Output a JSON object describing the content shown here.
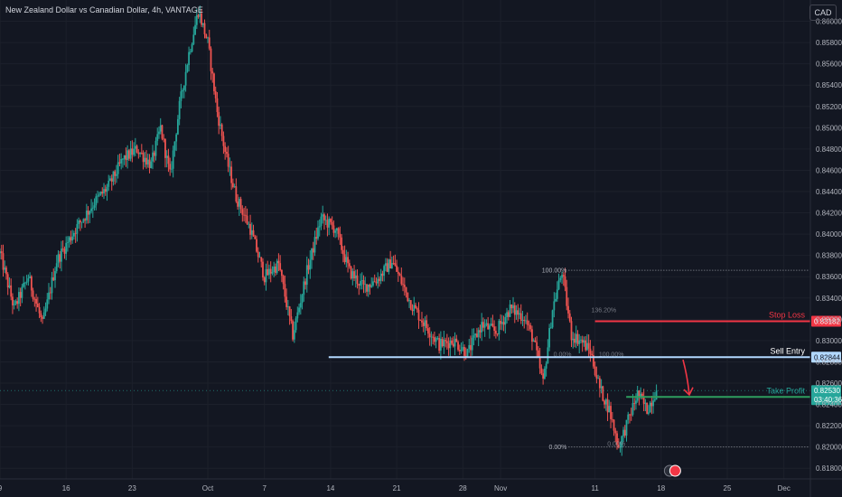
{
  "title": "New Zealand Dollar vs Canadian Dollar, 4h, VANTAGE",
  "currency": "CAD",
  "chart_data": {
    "type": "candlestick",
    "ylim": [
      0.817,
      0.862
    ],
    "y_ticks": [
      "0.86000",
      "0.85800",
      "0.85600",
      "0.85400",
      "0.85200",
      "0.85000",
      "0.84800",
      "0.84600",
      "0.84400",
      "0.84200",
      "0.84000",
      "0.83800",
      "0.83600",
      "0.83400",
      "0.83200",
      "0.83000",
      "0.82800",
      "0.82600",
      "0.82400",
      "0.82200",
      "0.82000",
      "0.81800"
    ],
    "x_ticks": [
      {
        "label": "9",
        "day": 0
      },
      {
        "label": "16",
        "day": 7
      },
      {
        "label": "23",
        "day": 14
      },
      {
        "label": "Oct",
        "day": 22
      },
      {
        "label": "7",
        "day": 28
      },
      {
        "label": "14",
        "day": 35
      },
      {
        "label": "21",
        "day": 42
      },
      {
        "label": "28",
        "day": 49
      },
      {
        "label": "Nov",
        "day": 53
      },
      {
        "label": "11",
        "day": 63
      },
      {
        "label": "18",
        "day": 70
      },
      {
        "label": "25",
        "day": 77
      },
      {
        "label": "Dec",
        "day": 83
      }
    ],
    "x_range_days": [
      0,
      85.8
    ],
    "price_path": [
      [
        0,
        0.8382
      ],
      [
        1.5,
        0.833
      ],
      [
        3,
        0.836
      ],
      [
        4.5,
        0.8315
      ],
      [
        6,
        0.8375
      ],
      [
        8,
        0.8405
      ],
      [
        10,
        0.843
      ],
      [
        11.5,
        0.8445
      ],
      [
        13,
        0.847
      ],
      [
        14.5,
        0.848
      ],
      [
        16,
        0.8465
      ],
      [
        17,
        0.85
      ],
      [
        18,
        0.8455
      ],
      [
        19,
        0.852
      ],
      [
        20,
        0.857
      ],
      [
        21,
        0.861
      ],
      [
        22,
        0.858
      ],
      [
        23,
        0.8515
      ],
      [
        24,
        0.847
      ],
      [
        25,
        0.8435
      ],
      [
        26.5,
        0.8405
      ],
      [
        28,
        0.836
      ],
      [
        29.5,
        0.8372
      ],
      [
        31,
        0.8305
      ],
      [
        32.5,
        0.8365
      ],
      [
        34,
        0.8415
      ],
      [
        35.5,
        0.8405
      ],
      [
        37,
        0.8365
      ],
      [
        38.5,
        0.835
      ],
      [
        40,
        0.8358
      ],
      [
        41.5,
        0.8375
      ],
      [
        42.5,
        0.8355
      ],
      [
        43.5,
        0.8335
      ],
      [
        45,
        0.8315
      ],
      [
        46.5,
        0.8296
      ],
      [
        48,
        0.83
      ],
      [
        49.5,
        0.8288
      ],
      [
        51,
        0.8315
      ],
      [
        52.5,
        0.8308
      ],
      [
        54,
        0.833
      ],
      [
        55.5,
        0.8322
      ],
      [
        56.5,
        0.83
      ],
      [
        57.5,
        0.826
      ],
      [
        58.5,
        0.833
      ],
      [
        59.5,
        0.8365
      ],
      [
        60.5,
        0.8305
      ],
      [
        61.5,
        0.83
      ],
      [
        62.5,
        0.829
      ],
      [
        63.5,
        0.8255
      ],
      [
        64.5,
        0.8235
      ],
      [
        65.5,
        0.82
      ],
      [
        66.5,
        0.8225
      ],
      [
        67.5,
        0.825
      ],
      [
        68.5,
        0.8235
      ],
      [
        69.5,
        0.8253
      ]
    ],
    "last_price": "0.82530",
    "countdown": "03:40:36",
    "levels": {
      "stop_loss": {
        "label": "Stop Loss",
        "price": 0.83182,
        "tag": "0.83182",
        "color": "#f23645",
        "from_day": 63
      },
      "sell_entry": {
        "label": "Sell Entry",
        "price": 0.82844,
        "tag": "0.82844",
        "color": "#b2d8ff",
        "from_day": 34.8
      },
      "take_profit": {
        "label": "Take Profit",
        "price": 0.8247,
        "color": "#2e9e5e",
        "from_day": 66.3
      }
    },
    "fibonacci": {
      "top": {
        "label": "100.00%",
        "price": 0.8366
      },
      "bottom": {
        "label": "0.00%",
        "price": 0.82
      },
      "mid_labels": [
        {
          "label": "136.20%",
          "price": 0.8326
        },
        {
          "label": "100.00%",
          "price": 0.82844
        },
        {
          "label": "0.00%",
          "price": 0.82844
        },
        {
          "label": "0.00%",
          "price": 0.82
        }
      ]
    }
  }
}
